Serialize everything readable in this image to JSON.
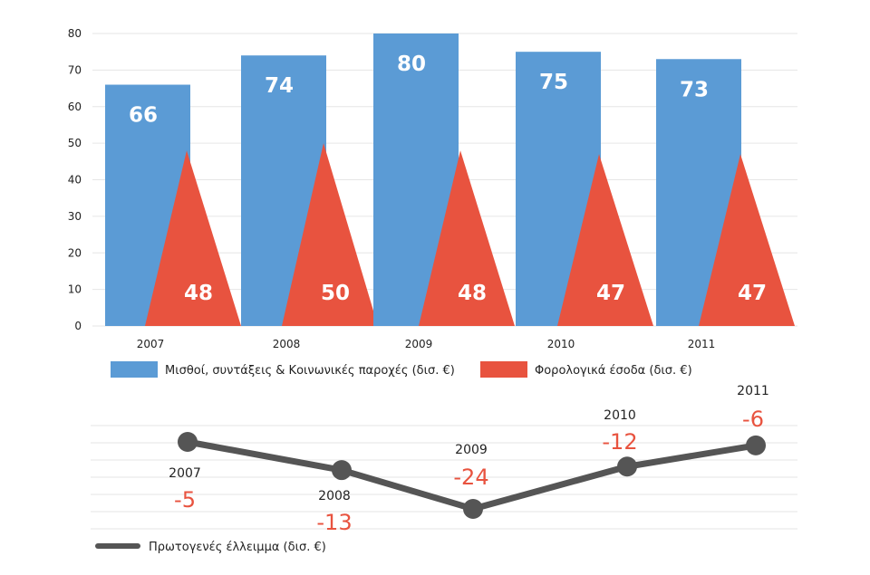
{
  "colors": {
    "spending": "#5b9bd5",
    "revenue": "#e8533f",
    "line": "#555555",
    "grid": "#e6e6e6",
    "value_text": "#e8533f"
  },
  "chart_data": [
    {
      "type": "bar",
      "categories": [
        "2007",
        "2008",
        "2009",
        "2010",
        "2011"
      ],
      "series": [
        {
          "name": "Μισθοί, συντάξεις & Κοινωνικές παροχές (δισ. €)",
          "values": [
            66,
            74,
            80,
            75,
            73
          ],
          "mark": "bar"
        },
        {
          "name": "Φορολογικά έσοδα (δισ. €)",
          "values": [
            48,
            50,
            48,
            47,
            47
          ],
          "mark": "triangle"
        }
      ],
      "yticks": [
        "0",
        "10",
        "20",
        "30",
        "40",
        "50",
        "60",
        "70",
        "80"
      ],
      "ylim": [
        0,
        80
      ],
      "legend": "bottom"
    },
    {
      "type": "line",
      "categories": [
        "2007",
        "2008",
        "2009",
        "2010",
        "2011"
      ],
      "series": [
        {
          "name": "Πρωτογενές έλλειμμα (δισ. €)",
          "values": [
            -5,
            -13,
            -24,
            -12,
            -6
          ]
        }
      ],
      "labels": [
        "-5",
        "-13",
        "-24",
        "-12",
        "-6"
      ],
      "ylim": [
        -24,
        -5
      ],
      "legend": "bottom-left"
    }
  ]
}
